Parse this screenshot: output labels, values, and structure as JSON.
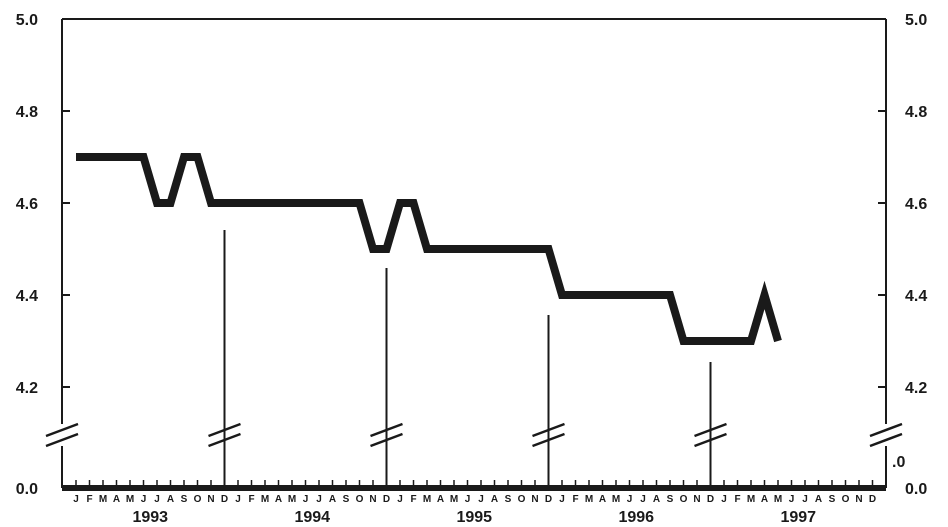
{
  "chart_data": {
    "type": "line",
    "title": "",
    "xlabel": "",
    "ylabel": "",
    "y_ticks": [
      "5.0",
      "4.8",
      "4.6",
      "4.4",
      "4.2",
      "0.0"
    ],
    "y_ticks_right": [
      "5.0",
      "4.8",
      "4.6",
      "4.4",
      "4.2",
      ".0",
      "0.0"
    ],
    "ylim": [
      4.2,
      5.0
    ],
    "y_axis_break": true,
    "month_labels": [
      "J",
      "F",
      "M",
      "A",
      "M",
      "J",
      "J",
      "A",
      "S",
      "O",
      "N",
      "D"
    ],
    "years": [
      "1993",
      "1994",
      "1995",
      "1996",
      "1997"
    ],
    "series": [
      {
        "color": "#1a1a1a",
        "x": [
          "1993-01",
          "1993-02",
          "1993-03",
          "1993-04",
          "1993-05",
          "1993-06",
          "1993-07",
          "1993-08",
          "1993-09",
          "1993-10",
          "1993-11",
          "1993-12",
          "1994-01",
          "1994-02",
          "1994-03",
          "1994-04",
          "1994-05",
          "1994-06",
          "1994-07",
          "1994-08",
          "1994-09",
          "1994-10",
          "1994-11",
          "1994-12",
          "1995-01",
          "1995-02",
          "1995-03",
          "1995-04",
          "1995-05",
          "1995-06",
          "1995-07",
          "1995-08",
          "1995-09",
          "1995-10",
          "1995-11",
          "1995-12",
          "1996-01",
          "1996-02",
          "1996-03",
          "1996-04",
          "1996-05",
          "1996-06",
          "1996-07",
          "1996-08",
          "1996-09",
          "1996-10",
          "1996-11",
          "1996-12",
          "1997-01",
          "1997-02",
          "1997-03",
          "1997-04",
          "1997-05"
        ],
        "values": [
          4.7,
          4.7,
          4.7,
          4.7,
          4.7,
          4.7,
          4.6,
          4.6,
          4.7,
          4.7,
          4.6,
          4.6,
          4.6,
          4.6,
          4.6,
          4.6,
          4.6,
          4.6,
          4.6,
          4.6,
          4.6,
          4.6,
          4.5,
          4.5,
          4.6,
          4.6,
          4.5,
          4.5,
          4.5,
          4.5,
          4.5,
          4.5,
          4.5,
          4.5,
          4.5,
          4.5,
          4.4,
          4.4,
          4.4,
          4.4,
          4.4,
          4.4,
          4.4,
          4.4,
          4.4,
          4.3,
          4.3,
          4.3,
          4.3,
          4.3,
          4.3,
          4.4,
          4.3
        ]
      }
    ],
    "colors": {
      "line": "#1a1a1a",
      "axis": "#1a1a1a",
      "background": "#ffffff"
    }
  }
}
